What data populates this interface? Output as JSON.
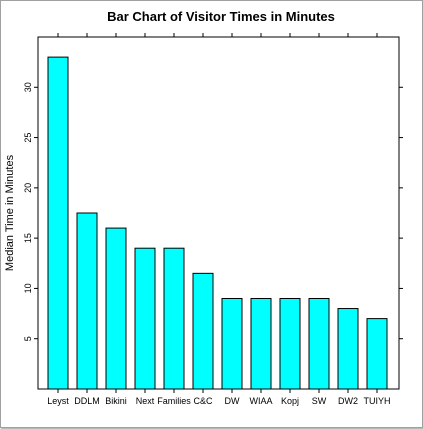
{
  "chart_data": {
    "type": "bar",
    "title": "Bar Chart of Visitor Times in Minutes",
    "xlabel": "",
    "ylabel": "Median Time in Minutes",
    "categories": [
      "Leyst",
      "DDLM",
      "Bikini",
      "Next",
      "Families",
      "C&C",
      "DW",
      "WIAA",
      "Kopj",
      "SW",
      "DW2",
      "TUIYH"
    ],
    "values": [
      33,
      17.5,
      16,
      14,
      14,
      11.5,
      9,
      9,
      9,
      9,
      8,
      7
    ],
    "ylim": [
      0,
      35
    ],
    "yticks": [
      5,
      10,
      15,
      20,
      25,
      30
    ],
    "grid": false,
    "colors": {
      "bar_fill": "#00ffff",
      "bar_stroke": "#000000",
      "axis": "#000000"
    }
  }
}
